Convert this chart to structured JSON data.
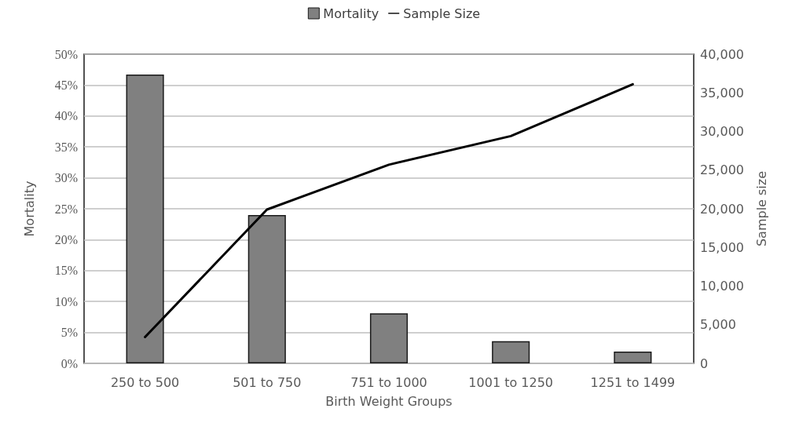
{
  "chart_data": {
    "type": "bar",
    "xlabel": "Birth Weight Groups",
    "ylabel": "Mortality",
    "y2label": "Sample size",
    "categories": [
      "250 to 500",
      "501 to 750",
      "751 to 1000",
      "1001 to 1250",
      "1251 to 1499"
    ],
    "series": [
      {
        "name": "Mortality",
        "color": "#808080",
        "values": [
          46.7,
          24.0,
          8.1,
          3.6,
          1.9
        ]
      },
      {
        "name": "Sample Size",
        "type": "line",
        "axis": "y2",
        "color": "#000000",
        "values": [
          3400,
          19900,
          25700,
          29400,
          36100
        ]
      }
    ],
    "ylim": [
      0,
      50
    ],
    "yticks": [
      {
        "value": 0,
        "label": "0%"
      },
      {
        "value": 5,
        "label": "5%"
      },
      {
        "value": 10,
        "label": "10%"
      },
      {
        "value": 15,
        "label": "15%"
      },
      {
        "value": 20,
        "label": "20%"
      },
      {
        "value": 25,
        "label": "25%"
      },
      {
        "value": 30,
        "label": "30%"
      },
      {
        "value": 35,
        "label": "35%"
      },
      {
        "value": 40,
        "label": "40%"
      },
      {
        "value": 45,
        "label": "45%"
      },
      {
        "value": 50,
        "label": "50%"
      }
    ],
    "y2lim": [
      0,
      40000
    ],
    "y2ticks": [
      0,
      {
        "value": 5000,
        "label": "5,000"
      },
      {
        "value": 10000,
        "label": "10,000"
      },
      {
        "value": 15000,
        "label": "15,000"
      },
      {
        "value": 20000,
        "label": "20,000"
      },
      {
        "value": 25000,
        "label": "25,000"
      },
      {
        "value": 30000,
        "label": "30,000"
      },
      {
        "value": 35000,
        "label": "35,000"
      },
      {
        "value": 40000,
        "label": "40,000"
      }
    ],
    "grid": "y",
    "legend": "top",
    "marker": "none",
    "line_style": "solid"
  }
}
